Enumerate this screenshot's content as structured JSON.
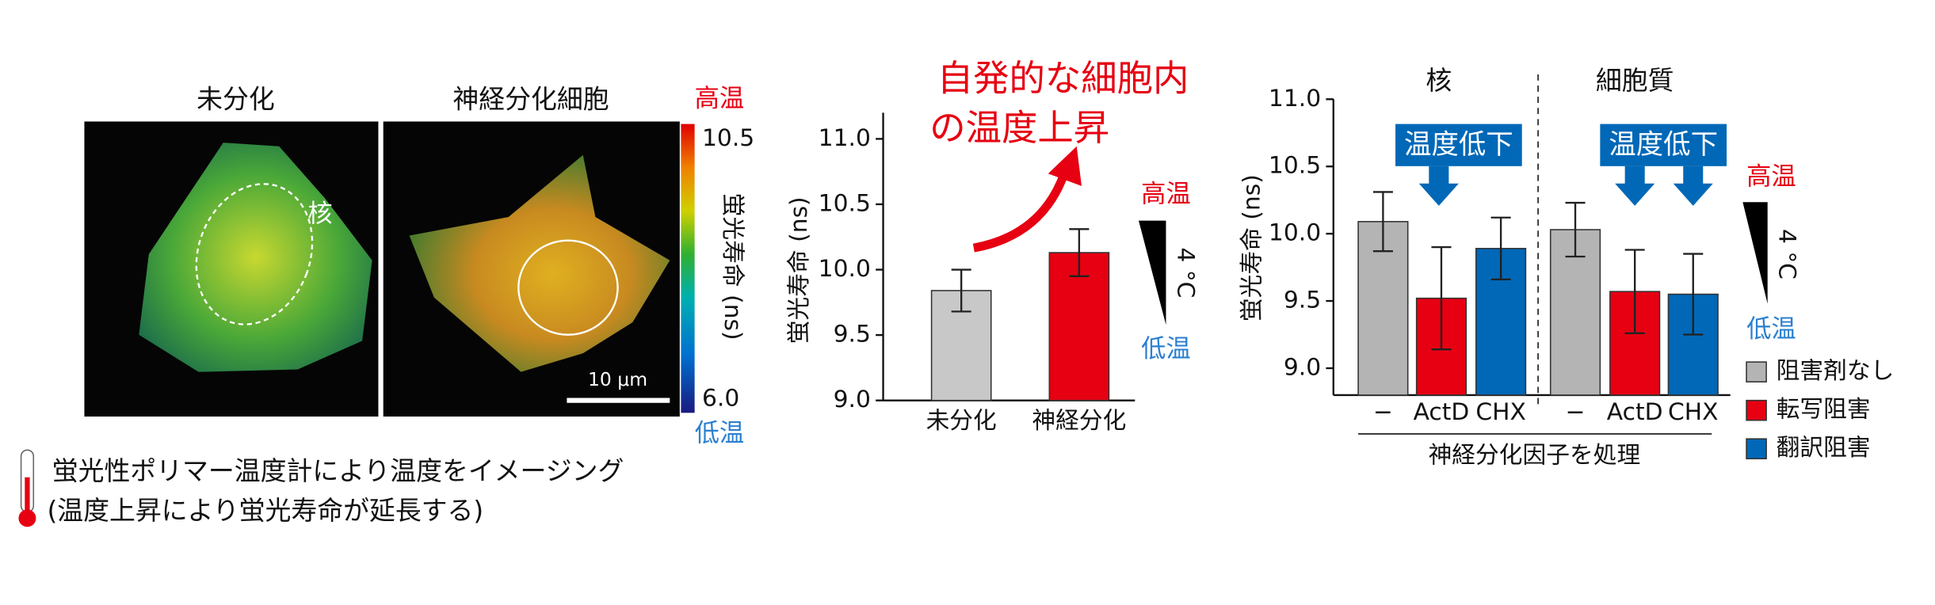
{
  "panel": {
    "labels": [
      "未分化",
      "神経分化細胞"
    ],
    "nucleus_label": "核",
    "scale_bar": "10 μm",
    "colorbar": {
      "label": "蛍光寿命 (ns)",
      "high": "高温",
      "low": "低温",
      "ticks": [
        {
          "value": 6,
          "label": "6.0"
        },
        10.5
      ]
    }
  },
  "caption": [
    "蛍光性ポリマー温度計により温度をイメージング",
    "(温度上昇により蛍光寿命が延長する)"
  ],
  "chart_data": [
    {
      "type": "bar",
      "annotation": [
        "自発的な細胞内",
        "の温度上昇"
      ],
      "ylabel": "蛍光寿命 (ns)",
      "categories": [
        "未分化",
        "神経分化"
      ],
      "values": [
        9.84,
        10.13
      ],
      "errors": [
        0.16,
        0.18
      ],
      "colors": [
        "#c8c8c8",
        "#e60012"
      ],
      "scale": {
        "high": "高温",
        "low": "低温",
        "delta": "4 °C"
      },
      "ylim": [
        9,
        11.2
      ],
      "yticks": [
        {
          "value": 9,
          "label": "9.0"
        },
        9.5,
        {
          "value": 10,
          "label": "10.0"
        },
        10.5,
        {
          "value": 11,
          "label": "11.0"
        }
      ]
    },
    {
      "type": "grouped-bar",
      "groups": [
        "核",
        "細胞質"
      ],
      "callout": "温度低下",
      "ylabel": "蛍光寿命 (ns)",
      "xlabel": "神経分化因子を処理",
      "categories": [
        "−",
        "ActD",
        "CHX",
        "−",
        "ActD",
        "CHX"
      ],
      "series": [
        {
          "name": "阻害剤なし",
          "color": "#b4b4b4",
          "values": [
            10.09,
            null,
            null,
            10.03,
            null,
            null
          ],
          "errors": [
            0.22,
            null,
            null,
            0.2,
            null,
            null
          ]
        },
        {
          "name": "転写阻害",
          "color": "#e60012",
          "values": [
            null,
            9.52,
            null,
            null,
            9.57,
            null
          ],
          "errors": [
            null,
            0.38,
            null,
            null,
            0.31,
            null
          ]
        },
        {
          "name": "翻訳阻害",
          "color": "#0068b7",
          "values": [
            null,
            null,
            9.89,
            null,
            null,
            9.55
          ],
          "errors": [
            null,
            null,
            0.23,
            null,
            null,
            0.3
          ]
        }
      ],
      "scale": {
        "high": "高温",
        "low": "低温",
        "delta": "4 °C"
      },
      "ylim": [
        8.8,
        11
      ],
      "yticks": [
        {
          "value": 9,
          "label": "9.0"
        },
        9.5,
        {
          "value": 10,
          "label": "10.0"
        },
        10.5,
        {
          "value": 11,
          "label": "11.0"
        }
      ]
    }
  ]
}
